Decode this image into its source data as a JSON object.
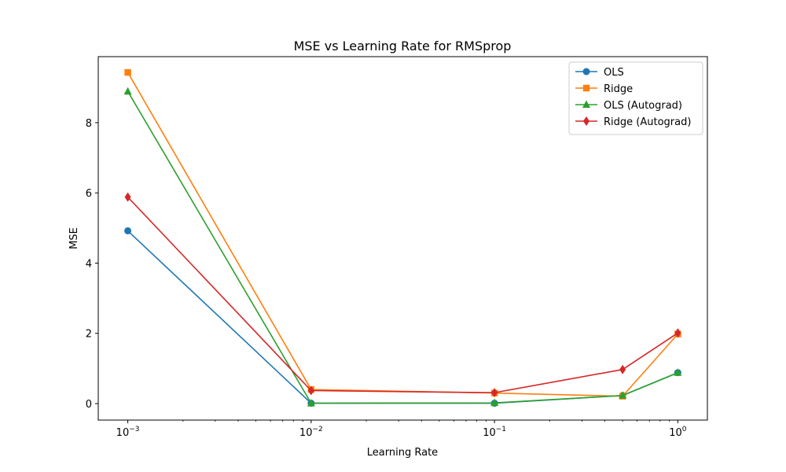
{
  "chart_data": {
    "type": "line",
    "title": "MSE vs Learning Rate for RMSprop",
    "xlabel": "Learning Rate",
    "ylabel": "MSE",
    "xscale": "log",
    "xlim": [
      0.00069,
      1.45
    ],
    "ylim": [
      -0.47,
      9.88
    ],
    "grid": false,
    "legend_position": "upper right",
    "x": [
      0.001,
      0.01,
      0.1,
      0.5,
      1.0
    ],
    "x_ticks": [
      {
        "value": 0.001,
        "base": "10",
        "exp": "−3"
      },
      {
        "value": 0.01,
        "base": "10",
        "exp": "−2"
      },
      {
        "value": 0.1,
        "base": "10",
        "exp": "−1"
      },
      {
        "value": 1.0,
        "base": "10",
        "exp": "0"
      }
    ],
    "y_ticks": [
      {
        "value": 0,
        "label": "0"
      },
      {
        "value": 2,
        "label": "2"
      },
      {
        "value": 4,
        "label": "4"
      },
      {
        "value": 6,
        "label": "6"
      },
      {
        "value": 8,
        "label": "8"
      }
    ],
    "series": [
      {
        "name": "OLS",
        "color": "#1f77b4",
        "marker": "circle",
        "values": [
          4.92,
          0.01,
          0.01,
          0.23,
          0.88
        ]
      },
      {
        "name": "Ridge",
        "color": "#ff7f0e",
        "marker": "square",
        "values": [
          9.43,
          0.4,
          0.3,
          0.21,
          1.98
        ]
      },
      {
        "name": "OLS (Autograd)",
        "color": "#2ca02c",
        "marker": "triangle",
        "values": [
          8.89,
          0.01,
          0.02,
          0.23,
          0.88
        ]
      },
      {
        "name": "Ridge (Autograd)",
        "color": "#d62728",
        "marker": "diamond",
        "values": [
          5.88,
          0.37,
          0.31,
          0.97,
          2.01
        ]
      }
    ]
  }
}
